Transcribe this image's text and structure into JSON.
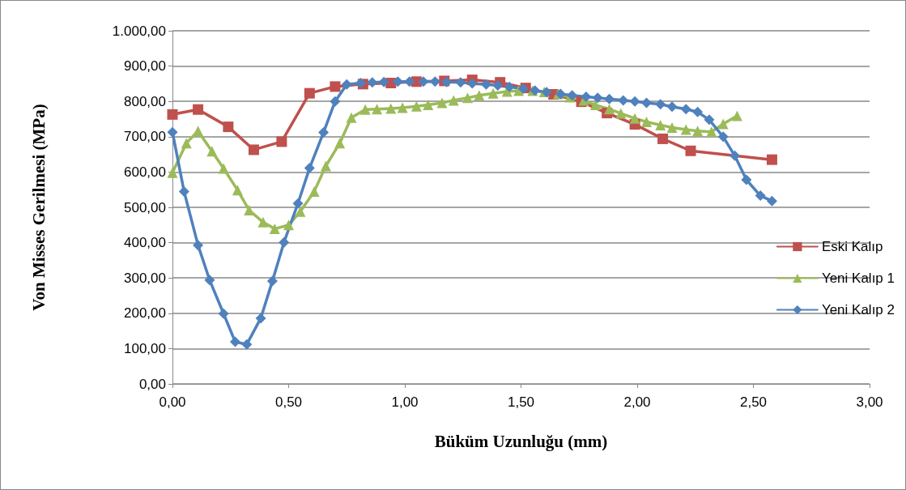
{
  "chart_data": {
    "type": "line",
    "xlabel": "Büküm Uzunluğu (mm)",
    "ylabel": "Von Misses Gerilmesi (MPa)",
    "xlim": [
      0,
      3
    ],
    "xticks": [
      {
        "value": 0,
        "label": "0,00"
      },
      {
        "value": 0.5,
        "label": "0,50"
      },
      {
        "value": 1,
        "label": "1,00"
      },
      {
        "value": 1.5,
        "label": "1,50"
      },
      {
        "value": 2,
        "label": "2,00"
      },
      {
        "value": 2.5,
        "label": "2,50"
      },
      {
        "value": 3,
        "label": "3,00"
      }
    ],
    "ylim": [
      0,
      1000
    ],
    "yticks": [
      {
        "value": 0,
        "label": "0,00"
      },
      {
        "value": 100,
        "label": "100,00"
      },
      {
        "value": 200,
        "label": "200,00"
      },
      {
        "value": 300,
        "label": "300,00"
      },
      {
        "value": 400,
        "label": "400,00"
      },
      {
        "value": 500,
        "label": "500,00"
      },
      {
        "value": 600,
        "label": "600,00"
      },
      {
        "value": 700,
        "label": "700,00"
      },
      {
        "value": 800,
        "label": "800,00"
      },
      {
        "value": 900,
        "label": "900,00"
      },
      {
        "value": 1000,
        "label": "1.000,00"
      }
    ],
    "grid": "y",
    "legend": "right",
    "line_style": "solid",
    "series": [
      {
        "name": "Eski Kalıp",
        "color": "#c0504d",
        "marker": "square",
        "x": [
          0,
          0.11,
          0.24,
          0.35,
          0.47,
          0.59,
          0.7,
          0.82,
          0.94,
          1.05,
          1.17,
          1.29,
          1.41,
          1.52,
          1.64,
          1.76,
          1.87,
          1.99,
          2.11,
          2.23,
          2.58
        ],
        "values": [
          763,
          777,
          728,
          663,
          686,
          823,
          842,
          849,
          852,
          856,
          858,
          861,
          854,
          838,
          820,
          799,
          767,
          735,
          694,
          660,
          635
        ]
      },
      {
        "name": "Yeni Kalıp 1",
        "color": "#9bbb59",
        "marker": "triangle",
        "x": [
          0,
          0.06,
          0.11,
          0.17,
          0.22,
          0.28,
          0.33,
          0.39,
          0.44,
          0.5,
          0.55,
          0.61,
          0.66,
          0.72,
          0.77,
          0.83,
          0.88,
          0.94,
          0.99,
          1.05,
          1.1,
          1.16,
          1.21,
          1.27,
          1.32,
          1.38,
          1.44,
          1.49,
          1.55,
          1.6,
          1.66,
          1.71,
          1.77,
          1.82,
          1.88,
          1.93,
          1.99,
          2.04,
          2.1,
          2.15,
          2.21,
          2.26,
          2.32,
          2.37,
          2.43
        ],
        "values": [
          598,
          682,
          716,
          659,
          610,
          549,
          492,
          458,
          439,
          450,
          488,
          545,
          617,
          682,
          754,
          777,
          778,
          780,
          782,
          786,
          790,
          796,
          803,
          810,
          817,
          823,
          828,
          830,
          830,
          827,
          821,
          812,
          803,
          790,
          778,
          766,
          752,
          742,
          733,
          726,
          720,
          716,
          714,
          736,
          759
        ]
      },
      {
        "name": "Yeni Kalıp 2",
        "color": "#4f81bd",
        "marker": "diamond",
        "x": [
          0,
          0.05,
          0.11,
          0.16,
          0.22,
          0.27,
          0.32,
          0.38,
          0.43,
          0.48,
          0.54,
          0.59,
          0.65,
          0.7,
          0.75,
          0.81,
          0.86,
          0.91,
          0.97,
          1.02,
          1.08,
          1.13,
          1.18,
          1.24,
          1.29,
          1.35,
          1.4,
          1.45,
          1.51,
          1.56,
          1.61,
          1.67,
          1.72,
          1.78,
          1.83,
          1.88,
          1.94,
          1.99,
          2.04,
          2.1,
          2.15,
          2.21,
          2.26,
          2.31,
          2.37,
          2.42,
          2.47,
          2.53,
          2.58
        ],
        "values": [
          713,
          545,
          393,
          294,
          199,
          119,
          112,
          186,
          291,
          401,
          511,
          611,
          712,
          800,
          848,
          852,
          854,
          855,
          856,
          856,
          856,
          856,
          855,
          854,
          851,
          848,
          845,
          841,
          836,
          831,
          826,
          821,
          817,
          813,
          810,
          807,
          803,
          800,
          796,
          792,
          785,
          778,
          770,
          748,
          700,
          646,
          578,
          533,
          518
        ]
      }
    ]
  }
}
